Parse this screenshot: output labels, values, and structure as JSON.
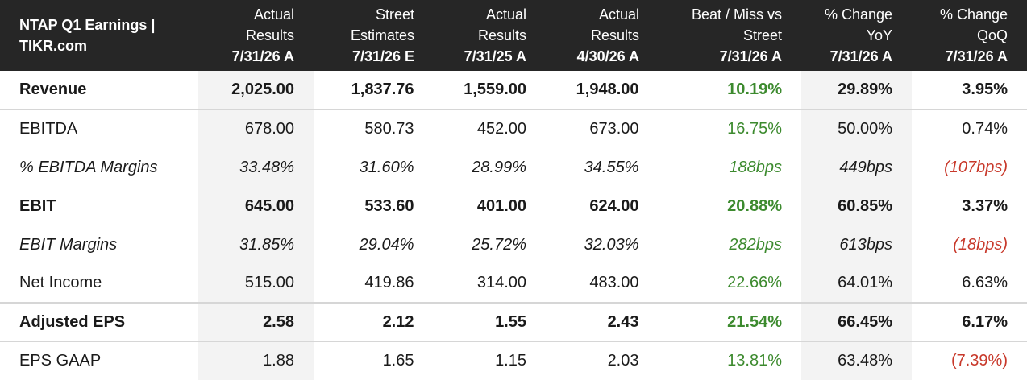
{
  "title_line1": "NTAP Q1 Earnings |",
  "title_line2": "TIKR.com",
  "columns": [
    {
      "l1": "Actual",
      "l2": "Results",
      "d": "7/31/26 A"
    },
    {
      "l1": "Street",
      "l2": "Estimates",
      "d": "7/31/26 E"
    },
    {
      "l1": "Actual",
      "l2": "Results",
      "d": "7/31/25 A"
    },
    {
      "l1": "Actual",
      "l2": "Results",
      "d": "4/30/26 A"
    },
    {
      "l1": "Beat / Miss vs",
      "l2": "Street",
      "d": "7/31/26 A"
    },
    {
      "l1": "% Change",
      "l2": "YoY",
      "d": "7/31/26 A"
    },
    {
      "l1": "% Change",
      "l2": "QoQ",
      "d": "7/31/26 A"
    }
  ],
  "rows": [
    {
      "label": "Revenue",
      "v": [
        "2,025.00",
        "1,837.76",
        "1,559.00",
        "1,948.00",
        "10.19%",
        "29.89%",
        "3.95%"
      ]
    },
    {
      "label": "EBITDA",
      "v": [
        "678.00",
        "580.73",
        "452.00",
        "673.00",
        "16.75%",
        "50.00%",
        "0.74%"
      ]
    },
    {
      "label": "% EBITDA Margins",
      "v": [
        "33.48%",
        "31.60%",
        "28.99%",
        "34.55%",
        "188bps",
        "449bps",
        "(107bps)"
      ]
    },
    {
      "label": "EBIT",
      "v": [
        "645.00",
        "533.60",
        "401.00",
        "624.00",
        "20.88%",
        "60.85%",
        "3.37%"
      ]
    },
    {
      "label": "EBIT Margins",
      "v": [
        "31.85%",
        "29.04%",
        "25.72%",
        "32.03%",
        "282bps",
        "613bps",
        "(18bps)"
      ]
    },
    {
      "label": "Net Income",
      "v": [
        "515.00",
        "419.86",
        "314.00",
        "483.00",
        "22.66%",
        "64.01%",
        "6.63%"
      ]
    },
    {
      "label": "Adjusted EPS",
      "v": [
        "2.58",
        "2.12",
        "1.55",
        "2.43",
        "21.54%",
        "66.45%",
        "6.17%"
      ]
    },
    {
      "label": "EPS GAAP",
      "v": [
        "1.88",
        "1.65",
        "1.15",
        "2.03",
        "13.81%",
        "63.48%",
        "(7.39%)"
      ]
    }
  ],
  "colors": {
    "header_bg": "#262626",
    "positive": "#3c8a2e",
    "negative": "#c8392b",
    "shade": "#f3f3f3"
  }
}
